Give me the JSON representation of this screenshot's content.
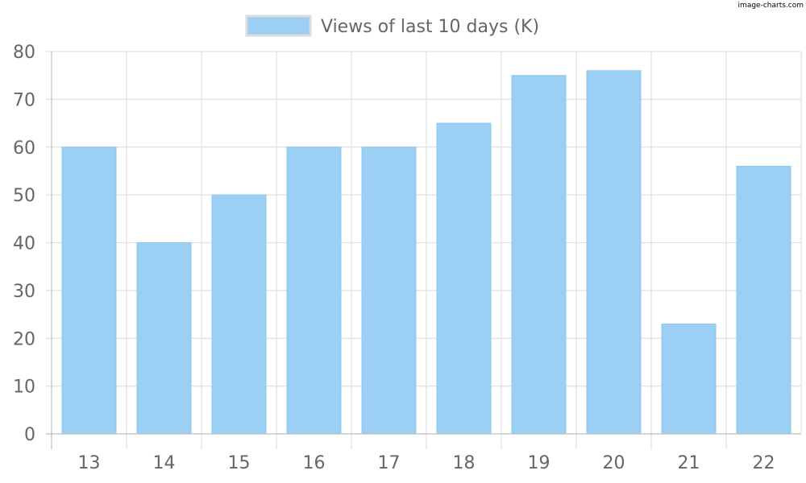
{
  "watermark": "image-charts.com",
  "colors": {
    "bar_fill": "#9bcff3",
    "bar_stroke": "#8ec7ef",
    "grid": "#e0e0e0",
    "axis": "#bdbdbd",
    "text": "#666666"
  },
  "chart_data": {
    "type": "bar",
    "categories": [
      "13",
      "14",
      "15",
      "16",
      "17",
      "18",
      "19",
      "20",
      "21",
      "22"
    ],
    "series": [
      {
        "name": "Views of last 10 days (K)",
        "values": [
          60,
          40,
          50,
          60,
          60,
          65,
          75,
          76,
          23,
          56
        ]
      }
    ],
    "ylim": [
      0,
      80
    ],
    "yticks": [
      0,
      10,
      20,
      30,
      40,
      50,
      60,
      70,
      80
    ],
    "grid": true,
    "legend_position": "top-center",
    "xlabel": "",
    "ylabel": ""
  }
}
